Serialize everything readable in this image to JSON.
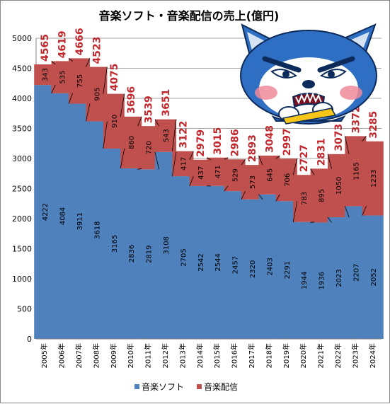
{
  "chart_data": {
    "type": "bar",
    "stacked": true,
    "title": "音楽ソフト・音楽配信の売上(億円)",
    "categories": [
      "2005年",
      "2006年",
      "2007年",
      "2008年",
      "2009年",
      "2010年",
      "2011年",
      "2012年",
      "2013年",
      "2014年",
      "2015年",
      "2016年",
      "2017年",
      "2018年",
      "2019年",
      "2020年",
      "2021年",
      "2022年",
      "2023年",
      "2024年"
    ],
    "series": [
      {
        "name": "音楽ソフト",
        "color": "#4f81bd",
        "values": [
          4222,
          4084,
          3911,
          3618,
          3165,
          2836,
          2819,
          3108,
          2705,
          2542,
          2544,
          2457,
          2320,
          2403,
          2291,
          1944,
          1936,
          2023,
          2207,
          2052
        ]
      },
      {
        "name": "音楽配信",
        "color": "#c0504d",
        "values": [
          343,
          535,
          755,
          905,
          910,
          860,
          720,
          543,
          417,
          437,
          471,
          529,
          573,
          645,
          706,
          783,
          895,
          1050,
          1165,
          1233
        ]
      }
    ],
    "totals": [
      4565,
      4619,
      4666,
      4523,
      4075,
      3696,
      3539,
      3651,
      3122,
      2979,
      3015,
      2986,
      2893,
      3048,
      2997,
      2727,
      2831,
      3073,
      3372,
      3285
    ],
    "yticks": [
      "0",
      "500",
      "1000",
      "1500",
      "2000",
      "2500",
      "3000",
      "3500",
      "4000",
      "4500",
      "5000"
    ],
    "ylim": [
      0,
      5000
    ],
    "legend_position": "bottom",
    "grid": true,
    "total_label_color": "#c0282d",
    "mascot": "angry-shiba-dog-icon"
  }
}
